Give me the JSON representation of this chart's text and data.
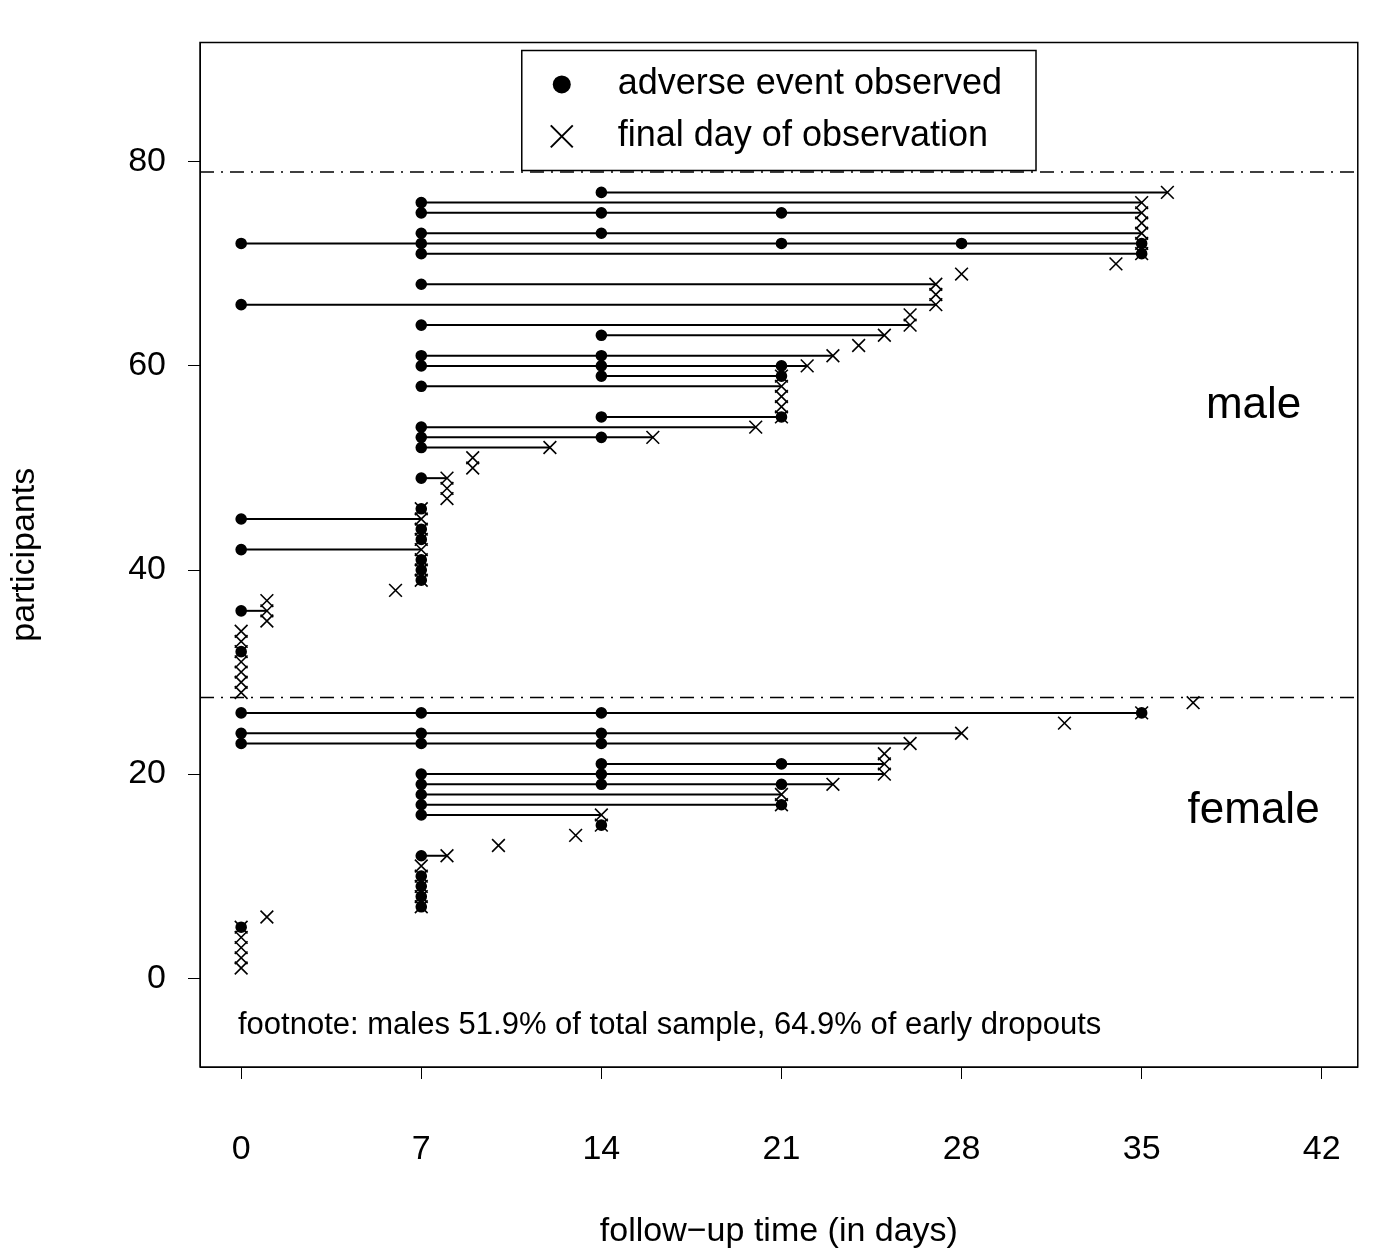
{
  "chart_data": {
    "type": "scatter",
    "xlabel": "follow−up time (in days)",
    "ylabel": "participants",
    "xlim": [
      -1.6,
      43.4
    ],
    "ylim": [
      -8.7,
      91.7
    ],
    "xticks": [
      0,
      7,
      14,
      21,
      28,
      35,
      42
    ],
    "yticks": [
      0,
      20,
      40,
      60,
      80
    ],
    "grid": false,
    "legend": "top",
    "ref_lines": [
      {
        "axis": "y",
        "value": 79,
        "color": "#000000",
        "line_style": "dashdot"
      },
      {
        "axis": "y",
        "value": 27.5,
        "color": "#000000",
        "line_style": "dashdot"
      }
    ],
    "annotations": [
      "male",
      "female",
      "footnote: males 51.9% of total sample, 64.9% of early dropouts"
    ],
    "series": [
      {
        "name": "adverse event observed",
        "type": "scatter",
        "marker": "circle",
        "color": "#000000",
        "x": [
          0,
          7,
          7,
          7,
          7,
          7,
          14,
          7,
          7,
          21,
          7,
          7,
          14,
          21,
          7,
          14,
          14,
          21,
          0,
          7,
          14,
          0,
          7,
          14,
          0,
          7,
          14,
          35,
          0,
          0,
          7,
          7,
          7,
          0,
          7,
          7,
          0,
          7,
          7,
          7,
          7,
          14,
          7,
          14,
          21,
          7,
          14,
          21,
          7,
          14,
          21,
          7,
          14,
          14,
          7,
          0,
          7,
          7,
          35,
          0,
          7,
          21,
          28,
          35,
          7,
          14,
          7,
          14,
          21,
          7,
          14
        ],
        "values": [
          5,
          7,
          8,
          9,
          10,
          12,
          15,
          16,
          17,
          17,
          18,
          19,
          19,
          19,
          20,
          20,
          21,
          21,
          23,
          23,
          23,
          24,
          24,
          24,
          26,
          26,
          26,
          26,
          32,
          36,
          39,
          40,
          41,
          42,
          43,
          44,
          45,
          46,
          49,
          52,
          53,
          53,
          54,
          55,
          55,
          58,
          59,
          59,
          60,
          60,
          60,
          61,
          61,
          63,
          64,
          66,
          68,
          71,
          71,
          72,
          72,
          72,
          72,
          72,
          73,
          73,
          75,
          75,
          75,
          76,
          77
        ]
      },
      {
        "name": "final day of observation",
        "type": "scatter",
        "marker": "cross",
        "color": "#000000",
        "x": [
          0,
          0,
          0,
          0,
          0,
          1,
          7,
          7,
          7,
          7,
          7,
          8,
          10,
          13,
          14,
          14,
          21,
          21,
          23,
          25,
          25,
          25,
          26,
          28,
          32,
          35,
          37,
          0,
          0,
          0,
          0,
          0,
          0,
          0,
          1,
          1,
          1,
          6,
          7,
          7,
          7,
          7,
          7,
          7,
          7,
          7,
          8,
          8,
          8,
          9,
          9,
          12,
          16,
          20,
          21,
          21,
          21,
          21,
          21,
          22,
          23,
          24,
          25,
          26,
          26,
          27,
          27,
          27,
          28,
          34,
          35,
          35,
          35,
          35,
          35,
          35,
          36
        ],
        "values": [
          1,
          2,
          3,
          4,
          5,
          6,
          7,
          8,
          9,
          10,
          11,
          12,
          13,
          14,
          15,
          16,
          17,
          18,
          19,
          20,
          21,
          22,
          23,
          24,
          25,
          26,
          27,
          28,
          29,
          30,
          31,
          32,
          33,
          34,
          35,
          36,
          37,
          38,
          39,
          40,
          41,
          42,
          43,
          44,
          45,
          46,
          47,
          48,
          49,
          50,
          51,
          52,
          53,
          54,
          55,
          56,
          57,
          58,
          59,
          60,
          61,
          62,
          63,
          64,
          65,
          66,
          67,
          68,
          69,
          70,
          71,
          72,
          73,
          74,
          75,
          76,
          77
        ]
      },
      {
        "type": "line",
        "marker": "none",
        "color": "#000000",
        "x": [
          7,
          8
        ],
        "values": [
          12,
          12
        ]
      },
      {
        "type": "line",
        "marker": "none",
        "color": "#000000",
        "x": [
          7,
          14
        ],
        "values": [
          16,
          16
        ]
      },
      {
        "type": "line",
        "marker": "none",
        "color": "#000000",
        "x": [
          7,
          21
        ],
        "values": [
          17,
          17
        ]
      },
      {
        "type": "line",
        "marker": "none",
        "color": "#000000",
        "x": [
          7,
          21
        ],
        "values": [
          18,
          18
        ]
      },
      {
        "type": "line",
        "marker": "none",
        "color": "#000000",
        "x": [
          7,
          23
        ],
        "values": [
          19,
          19
        ]
      },
      {
        "type": "line",
        "marker": "none",
        "color": "#000000",
        "x": [
          7,
          25
        ],
        "values": [
          20,
          20
        ]
      },
      {
        "type": "line",
        "marker": "none",
        "color": "#000000",
        "x": [
          14,
          25
        ],
        "values": [
          21,
          21
        ]
      },
      {
        "type": "line",
        "marker": "none",
        "color": "#000000",
        "x": [
          0,
          26
        ],
        "values": [
          23,
          23
        ]
      },
      {
        "type": "line",
        "marker": "none",
        "color": "#000000",
        "x": [
          0,
          28
        ],
        "values": [
          24,
          24
        ]
      },
      {
        "type": "line",
        "marker": "none",
        "color": "#000000",
        "x": [
          0,
          35
        ],
        "values": [
          26,
          26
        ]
      },
      {
        "type": "line",
        "marker": "none",
        "color": "#000000",
        "x": [
          0,
          1
        ],
        "values": [
          36,
          36
        ]
      },
      {
        "type": "line",
        "marker": "none",
        "color": "#000000",
        "x": [
          0,
          7
        ],
        "values": [
          42,
          42
        ]
      },
      {
        "type": "line",
        "marker": "none",
        "color": "#000000",
        "x": [
          0,
          7
        ],
        "values": [
          45,
          45
        ]
      },
      {
        "type": "line",
        "marker": "none",
        "color": "#000000",
        "x": [
          7,
          8
        ],
        "values": [
          49,
          49
        ]
      },
      {
        "type": "line",
        "marker": "none",
        "color": "#000000",
        "x": [
          7,
          12
        ],
        "values": [
          52,
          52
        ]
      },
      {
        "type": "line",
        "marker": "none",
        "color": "#000000",
        "x": [
          7,
          16
        ],
        "values": [
          53,
          53
        ]
      },
      {
        "type": "line",
        "marker": "none",
        "color": "#000000",
        "x": [
          7,
          20
        ],
        "values": [
          54,
          54
        ]
      },
      {
        "type": "line",
        "marker": "none",
        "color": "#000000",
        "x": [
          14,
          21
        ],
        "values": [
          55,
          55
        ]
      },
      {
        "type": "line",
        "marker": "none",
        "color": "#000000",
        "x": [
          7,
          21
        ],
        "values": [
          58,
          58
        ]
      },
      {
        "type": "line",
        "marker": "none",
        "color": "#000000",
        "x": [
          14,
          21
        ],
        "values": [
          59,
          59
        ]
      },
      {
        "type": "line",
        "marker": "none",
        "color": "#000000",
        "x": [
          7,
          22
        ],
        "values": [
          60,
          60
        ]
      },
      {
        "type": "line",
        "marker": "none",
        "color": "#000000",
        "x": [
          7,
          23
        ],
        "values": [
          61,
          61
        ]
      },
      {
        "type": "line",
        "marker": "none",
        "color": "#000000",
        "x": [
          14,
          25
        ],
        "values": [
          63,
          63
        ]
      },
      {
        "type": "line",
        "marker": "none",
        "color": "#000000",
        "x": [
          7,
          26
        ],
        "values": [
          64,
          64
        ]
      },
      {
        "type": "line",
        "marker": "none",
        "color": "#000000",
        "x": [
          0,
          27
        ],
        "values": [
          66,
          66
        ]
      },
      {
        "type": "line",
        "marker": "none",
        "color": "#000000",
        "x": [
          7,
          27
        ],
        "values": [
          68,
          68
        ]
      },
      {
        "type": "line",
        "marker": "none",
        "color": "#000000",
        "x": [
          7,
          35
        ],
        "values": [
          71,
          71
        ]
      },
      {
        "type": "line",
        "marker": "none",
        "color": "#000000",
        "x": [
          0,
          35
        ],
        "values": [
          72,
          72
        ]
      },
      {
        "type": "line",
        "marker": "none",
        "color": "#000000",
        "x": [
          7,
          35
        ],
        "values": [
          73,
          73
        ]
      },
      {
        "type": "line",
        "marker": "none",
        "color": "#000000",
        "x": [
          7,
          35
        ],
        "values": [
          75,
          75
        ]
      },
      {
        "type": "line",
        "marker": "none",
        "color": "#000000",
        "x": [
          7,
          35
        ],
        "values": [
          76,
          76
        ]
      },
      {
        "type": "line",
        "marker": "none",
        "color": "#000000",
        "x": [
          14,
          36
        ],
        "values": [
          77,
          77
        ]
      }
    ]
  }
}
